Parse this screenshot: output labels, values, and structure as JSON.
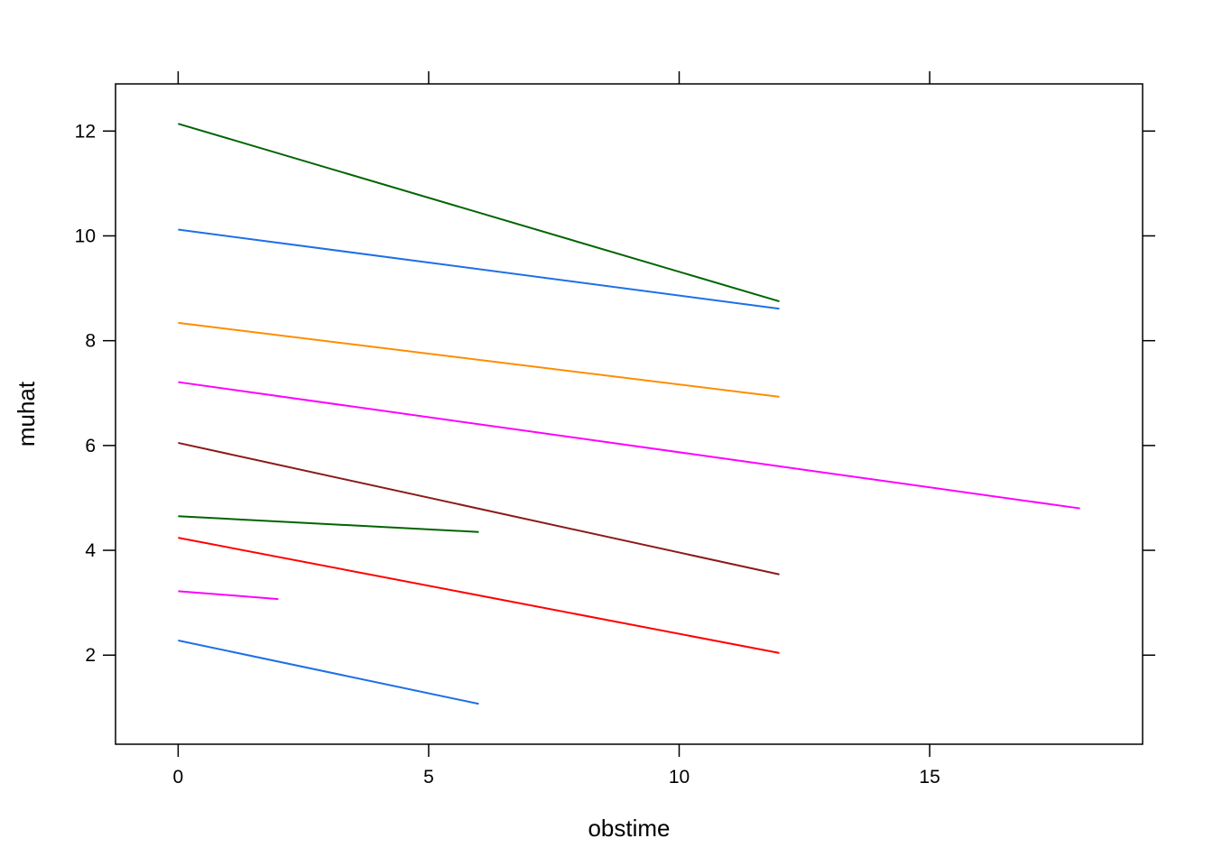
{
  "chart_data": {
    "type": "line",
    "xlabel": "obstime",
    "ylabel": "muhat",
    "xlim": [
      -1.25,
      19.25
    ],
    "ylim": [
      0.3,
      12.9
    ],
    "xticks": [
      0,
      5,
      10,
      15
    ],
    "yticks": [
      2,
      4,
      6,
      8,
      10,
      12
    ],
    "grid": false,
    "legend": "none",
    "series": [
      {
        "color": "#006400",
        "x": [
          0,
          12
        ],
        "y": [
          12.14,
          8.75
        ]
      },
      {
        "color": "#1E6FE6",
        "x": [
          0,
          12
        ],
        "y": [
          10.12,
          8.61
        ]
      },
      {
        "color": "#FF8C00",
        "x": [
          0,
          12
        ],
        "y": [
          8.34,
          6.93
        ]
      },
      {
        "color": "#FF00FF",
        "x": [
          0,
          18
        ],
        "y": [
          7.21,
          4.8
        ]
      },
      {
        "color": "#8B1A1A",
        "x": [
          0,
          12
        ],
        "y": [
          6.05,
          3.54
        ]
      },
      {
        "color": "#006400",
        "x": [
          0,
          6
        ],
        "y": [
          4.65,
          4.35
        ]
      },
      {
        "color": "#FF0000",
        "x": [
          0,
          12
        ],
        "y": [
          4.24,
          2.04
        ]
      },
      {
        "color": "#FF00FF",
        "x": [
          0,
          2
        ],
        "y": [
          3.22,
          3.07
        ]
      },
      {
        "color": "#1E6FE6",
        "x": [
          0,
          6
        ],
        "y": [
          2.28,
          1.07
        ]
      }
    ]
  }
}
